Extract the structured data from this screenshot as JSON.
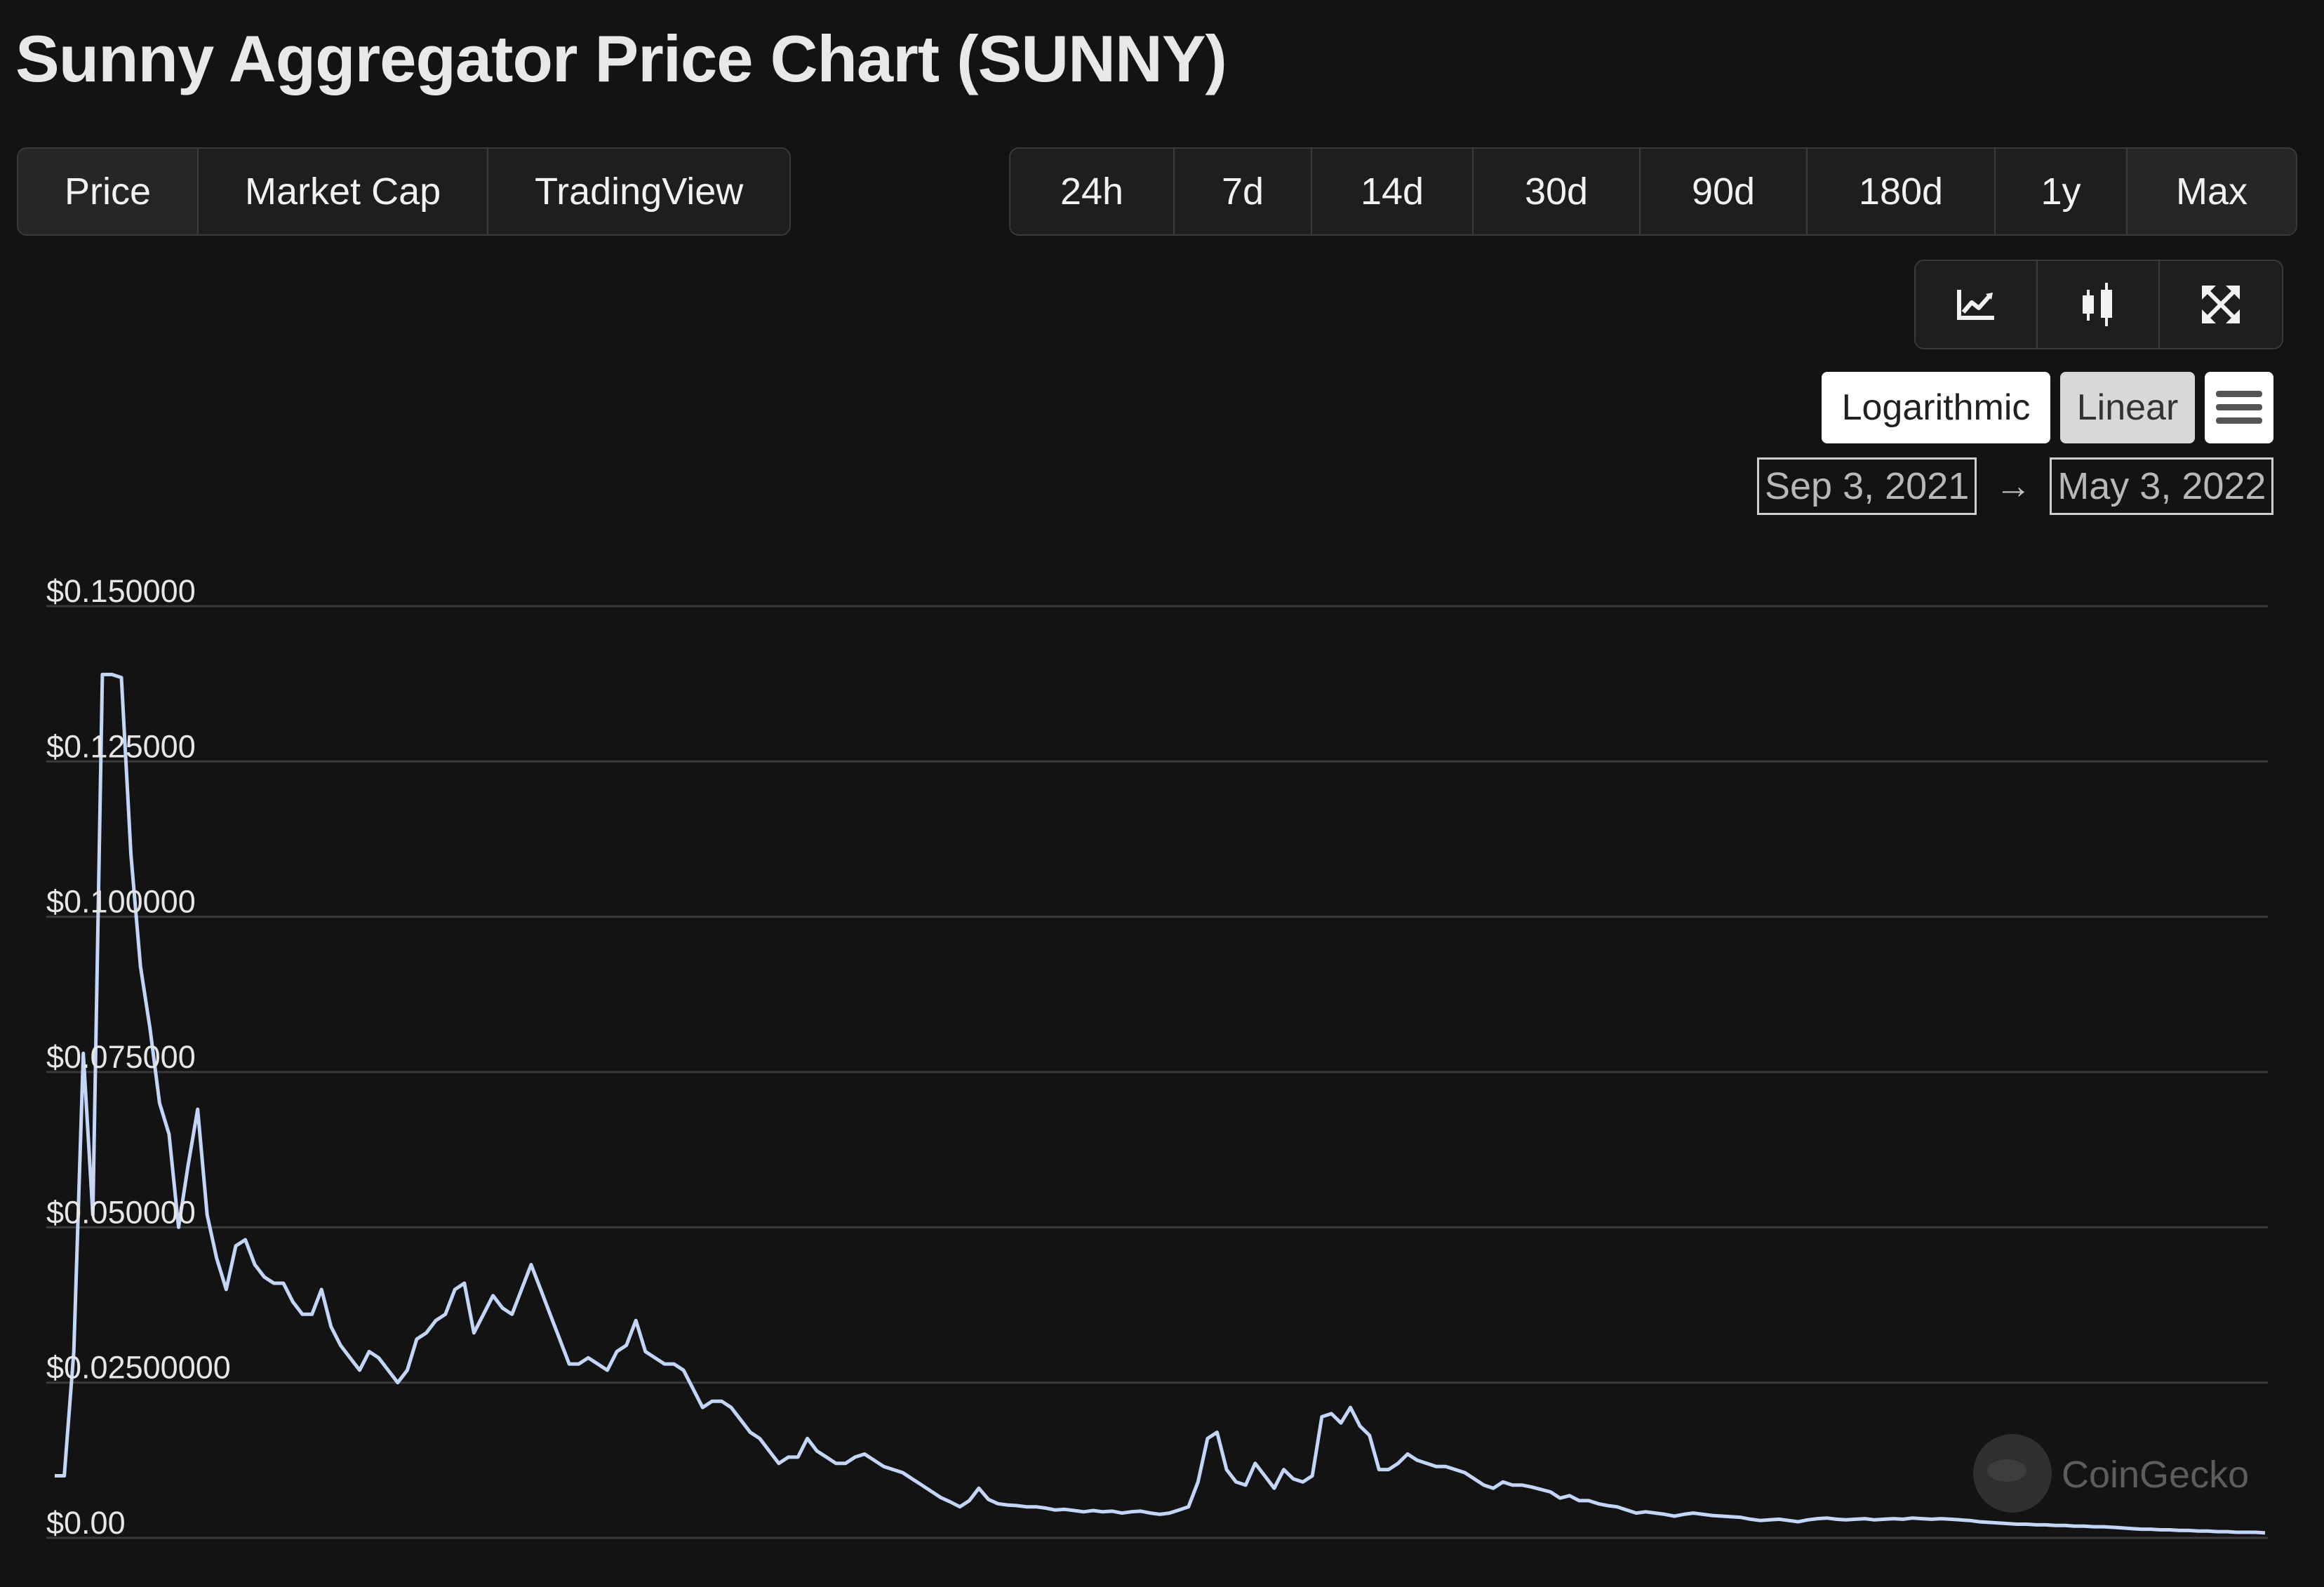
{
  "page": {
    "title": "Sunny Aggregator Price Chart (SUNNY)"
  },
  "tabs": [
    "Price",
    "Market Cap",
    "TradingView"
  ],
  "ranges": [
    "24h",
    "7d",
    "14d",
    "30d",
    "90d",
    "180d",
    "1y",
    "Max"
  ],
  "tools": [
    {
      "icon": "line-chart-icon"
    },
    {
      "icon": "candlestick-icon"
    },
    {
      "icon": "fullscreen-icon"
    }
  ],
  "scale": {
    "logarithmic_label": "Logarithmic",
    "linear_label": "Linear",
    "active": "Linear"
  },
  "date_range": {
    "from": "Sep 3, 2021",
    "arrow": "→",
    "to": "May 3, 2022"
  },
  "watermark": "CoinGecko",
  "colors": {
    "background": "#131314",
    "line": "#c3d6f7",
    "grid": "#3a3a3c"
  },
  "chart_data": {
    "type": "line",
    "title": "",
    "xlabel": "",
    "ylabel": "",
    "x_range": [
      "2021-09-03",
      "2022-05-03"
    ],
    "ylim": [
      0,
      0.15
    ],
    "yticks": [
      {
        "value": 0.15,
        "label": "$0.150000"
      },
      {
        "value": 0.125,
        "label": "$0.125000"
      },
      {
        "value": 0.1,
        "label": "$0.100000"
      },
      {
        "value": 0.075,
        "label": "$0.075000"
      },
      {
        "value": 0.05,
        "label": "$0.050000"
      },
      {
        "value": 0.025,
        "label": "$0.02500000"
      },
      {
        "value": 0,
        "label": "$0.00"
      }
    ],
    "grid": true,
    "legend": "none",
    "series": [
      {
        "values": [
          0.01,
          0.01,
          0.03,
          0.078,
          0.052,
          0.139,
          0.139,
          0.1385,
          0.11,
          0.092,
          0.082,
          0.07,
          0.065,
          0.05,
          0.06,
          0.069,
          0.052,
          0.045,
          0.04,
          0.047,
          0.048,
          0.044,
          0.042,
          0.041,
          0.041,
          0.038,
          0.036,
          0.036,
          0.04,
          0.034,
          0.031,
          0.029,
          0.027,
          0.03,
          0.029,
          0.027,
          0.025,
          0.027,
          0.032,
          0.033,
          0.035,
          0.036,
          0.04,
          0.041,
          0.033,
          0.036,
          0.039,
          0.037,
          0.036,
          0.04,
          0.044,
          0.04,
          0.036,
          0.032,
          0.028,
          0.028,
          0.029,
          0.028,
          0.027,
          0.03,
          0.031,
          0.035,
          0.03,
          0.029,
          0.028,
          0.028,
          0.027,
          0.024,
          0.021,
          0.022,
          0.022,
          0.021,
          0.019,
          0.017,
          0.016,
          0.014,
          0.012,
          0.013,
          0.013,
          0.016,
          0.014,
          0.013,
          0.012,
          0.012,
          0.013,
          0.0135,
          0.0125,
          0.0115,
          0.011,
          0.0105,
          0.0095,
          0.0085,
          0.0075,
          0.0065,
          0.0058,
          0.005,
          0.006,
          0.008,
          0.0062,
          0.0055,
          0.0053,
          0.0052,
          0.005,
          0.005,
          0.0048,
          0.0045,
          0.0046,
          0.0044,
          0.0042,
          0.0044,
          0.0042,
          0.0043,
          0.004,
          0.0042,
          0.0043,
          0.004,
          0.0038,
          0.004,
          0.0045,
          0.005,
          0.009,
          0.016,
          0.017,
          0.011,
          0.009,
          0.0085,
          0.012,
          0.01,
          0.008,
          0.011,
          0.0095,
          0.009,
          0.01,
          0.0195,
          0.02,
          0.0185,
          0.021,
          0.018,
          0.0165,
          0.011,
          0.011,
          0.012,
          0.0135,
          0.0125,
          0.012,
          0.0115,
          0.0115,
          0.011,
          0.0105,
          0.0095,
          0.0085,
          0.008,
          0.009,
          0.0085,
          0.0085,
          0.0082,
          0.0078,
          0.0074,
          0.0064,
          0.0068,
          0.006,
          0.006,
          0.0055,
          0.0052,
          0.005,
          0.0045,
          0.004,
          0.0042,
          0.004,
          0.0038,
          0.0035,
          0.0038,
          0.004,
          0.0038,
          0.0036,
          0.0035,
          0.0034,
          0.0033,
          0.003,
          0.0028,
          0.0029,
          0.003,
          0.0028,
          0.0026,
          0.0029,
          0.0031,
          0.0032,
          0.003,
          0.0029,
          0.003,
          0.0031,
          0.0029,
          0.003,
          0.0031,
          0.003,
          0.0032,
          0.0031,
          0.003,
          0.0031,
          0.003,
          0.0029,
          0.0028,
          0.0026,
          0.0025,
          0.0024,
          0.0023,
          0.0022,
          0.0022,
          0.0021,
          0.0021,
          0.002,
          0.002,
          0.0019,
          0.0019,
          0.0018,
          0.0018,
          0.0017,
          0.0016,
          0.0015,
          0.0014,
          0.0014,
          0.0013,
          0.0013,
          0.0012,
          0.0012,
          0.0011,
          0.0011,
          0.001,
          0.001,
          0.0009,
          0.0009,
          0.0009,
          0.0008
        ]
      }
    ]
  }
}
